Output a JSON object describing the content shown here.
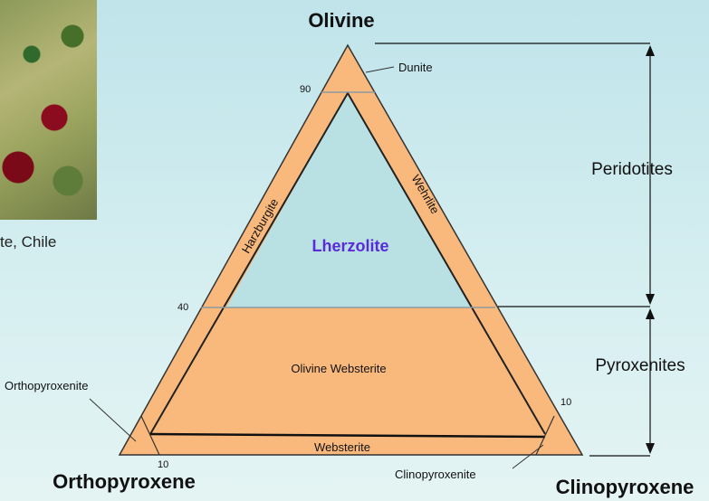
{
  "photo": {
    "caption": "te, Chile",
    "colors": {
      "rock": "#9aa45e",
      "garnet": "#8a0c1e"
    }
  },
  "vertices": {
    "top": "Olivine",
    "left": "Orthopyroxene",
    "right": "Clinopyroxene"
  },
  "regions": {
    "dunite": "Dunite",
    "harzburgite": "Harzburgite",
    "wehrlite": "Wehrlite",
    "lherzolite": "Lherzolite",
    "olivine_websterite": "Olivine Websterite",
    "websterite": "Websterite",
    "orthopyroxenite": "Orthopyroxenite",
    "clinopyroxenite": "Clinopyroxenite"
  },
  "ticks": {
    "olivine_90": "90",
    "olivine_40": "40",
    "opx_10": "10",
    "cpx_10": "10"
  },
  "groups": {
    "peridotites": "Peridotites",
    "pyroxenites": "Pyroxenites"
  },
  "colors": {
    "fill": "#f9b97c",
    "lherzolite_fill": "#b9e1e3",
    "lherzolite_text": "#5a2bd8"
  }
}
